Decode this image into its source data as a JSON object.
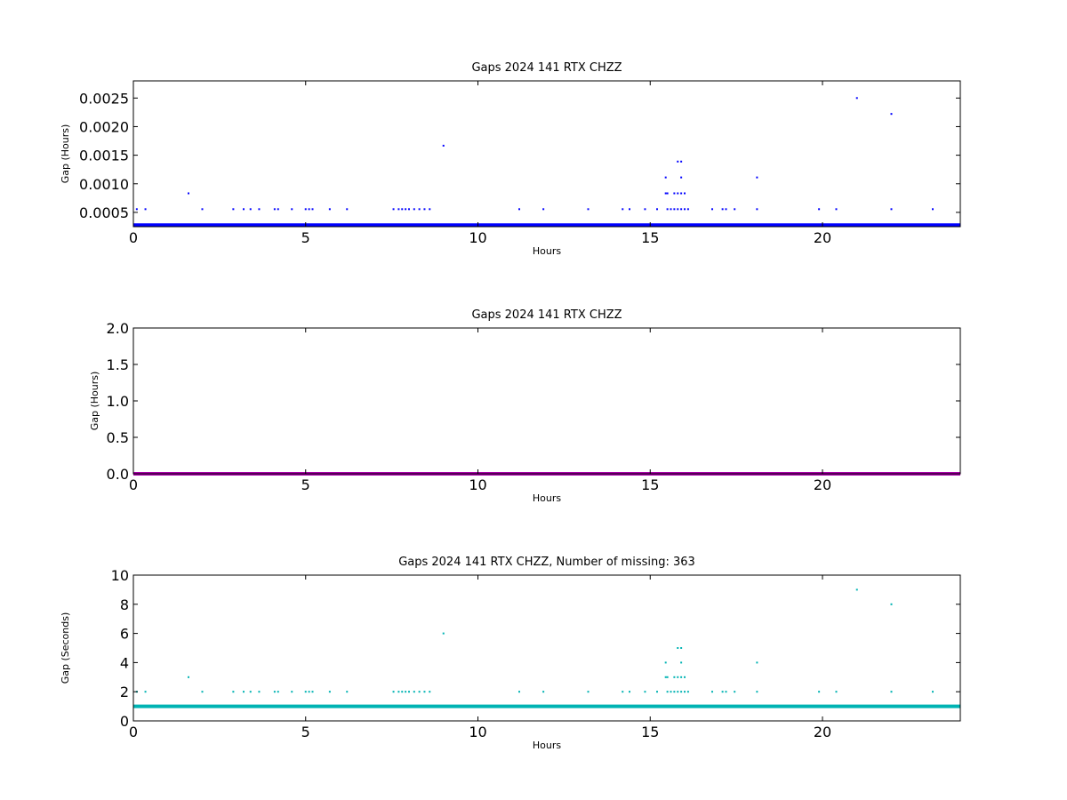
{
  "chart_data": [
    {
      "type": "scatter",
      "title": "Gaps 2024 141 RTX  CHZZ",
      "xlabel": "Hours",
      "ylabel": "Gap (Hours)",
      "xlim": [
        0,
        24
      ],
      "ylim": [
        0.00025,
        0.0028
      ],
      "xticks": [
        0,
        5,
        10,
        15,
        20
      ],
      "xtick_labels": [
        "0",
        "5",
        "10",
        "15",
        "20"
      ],
      "yticks": [
        0.0005,
        0.001,
        0.0015,
        0.002,
        0.0025
      ],
      "ytick_labels": [
        "0.0005",
        "0.0010",
        "0.0015",
        "0.0020",
        "0.0025"
      ],
      "grid": false,
      "color": "#0000ff",
      "baseline": {
        "y": 0.000278,
        "x_from": 0,
        "x_to": 24
      },
      "series": [
        {
          "x": [
            0.1,
            0.35,
            2.0,
            2.9,
            3.2,
            3.4,
            3.65,
            4.1,
            4.2,
            4.6,
            5.0,
            5.1,
            5.2,
            5.7,
            6.2,
            7.55,
            7.7,
            7.8,
            7.9,
            8.0,
            8.15,
            8.3,
            8.45,
            8.6,
            11.2,
            11.9,
            13.2,
            14.2,
            14.4,
            14.85,
            15.2,
            15.5,
            15.6,
            15.7,
            15.8,
            15.9,
            16.0,
            16.1,
            16.8,
            17.1,
            17.2,
            17.45,
            18.1,
            19.9,
            20.4,
            22.0,
            23.2,
            1.6,
            15.45,
            15.5,
            15.7,
            15.8,
            15.9,
            16.0,
            15.45,
            15.9,
            18.1,
            15.8,
            15.9,
            9.0,
            22.0,
            21.0
          ],
          "y": [
            0.000556,
            0.000556,
            0.000556,
            0.000556,
            0.000556,
            0.000556,
            0.000556,
            0.000556,
            0.000556,
            0.000556,
            0.000556,
            0.000556,
            0.000556,
            0.000556,
            0.000556,
            0.000556,
            0.000556,
            0.000556,
            0.000556,
            0.000556,
            0.000556,
            0.000556,
            0.000556,
            0.000556,
            0.000556,
            0.000556,
            0.000556,
            0.000556,
            0.000556,
            0.000556,
            0.000556,
            0.000556,
            0.000556,
            0.000556,
            0.000556,
            0.000556,
            0.000556,
            0.000556,
            0.000556,
            0.000556,
            0.000556,
            0.000556,
            0.000556,
            0.000556,
            0.000556,
            0.000556,
            0.000556,
            0.000833,
            0.000833,
            0.000833,
            0.000833,
            0.000833,
            0.000833,
            0.000833,
            0.001111,
            0.001111,
            0.001111,
            0.001389,
            0.001389,
            0.001667,
            0.002222,
            0.0025
          ]
        }
      ]
    },
    {
      "type": "scatter",
      "title": "Gaps 2024 141 RTX  CHZZ",
      "xlabel": "Hours",
      "ylabel": "Gap (Hours)",
      "xlim": [
        0,
        24
      ],
      "ylim": [
        0,
        2.0
      ],
      "xticks": [
        0,
        5,
        10,
        15,
        20
      ],
      "xtick_labels": [
        "0",
        "5",
        "10",
        "15",
        "20"
      ],
      "yticks": [
        0.0,
        0.5,
        1.0,
        1.5,
        2.0
      ],
      "ytick_labels": [
        "0.0",
        "0.5",
        "1.0",
        "1.5",
        "2.0"
      ],
      "grid": false,
      "color": "#aa00aa",
      "baseline": {
        "y": 0.0003,
        "x_from": 0,
        "x_to": 24
      },
      "series": [
        {
          "x": [],
          "y": []
        }
      ]
    },
    {
      "type": "scatter",
      "title": "Gaps 2024 141 RTX  CHZZ, Number of missing: 363",
      "xlabel": "Hours",
      "ylabel": "Gap (Seconds)",
      "xlim": [
        0,
        24
      ],
      "ylim": [
        0,
        10
      ],
      "xticks": [
        0,
        5,
        10,
        15,
        20
      ],
      "xtick_labels": [
        "0",
        "5",
        "10",
        "15",
        "20"
      ],
      "yticks": [
        0,
        2,
        4,
        6,
        8,
        10
      ],
      "ytick_labels": [
        "0",
        "2",
        "4",
        "6",
        "8",
        "10"
      ],
      "grid": false,
      "color": "#00b3b3",
      "baseline": {
        "y": 1,
        "x_from": 0,
        "x_to": 24
      },
      "series": [
        {
          "x": [
            0.1,
            0.35,
            2.0,
            2.9,
            3.2,
            3.4,
            3.65,
            4.1,
            4.2,
            4.6,
            5.0,
            5.1,
            5.2,
            5.7,
            6.2,
            7.55,
            7.7,
            7.8,
            7.9,
            8.0,
            8.15,
            8.3,
            8.45,
            8.6,
            11.2,
            11.9,
            13.2,
            14.2,
            14.4,
            14.85,
            15.2,
            15.5,
            15.6,
            15.7,
            15.8,
            15.9,
            16.0,
            16.1,
            16.8,
            17.1,
            17.2,
            17.45,
            18.1,
            19.9,
            20.4,
            22.0,
            23.2,
            1.6,
            15.45,
            15.5,
            15.7,
            15.8,
            15.9,
            16.0,
            15.45,
            15.9,
            18.1,
            15.8,
            15.9,
            9.0,
            22.0,
            21.0
          ],
          "y": [
            2,
            2,
            2,
            2,
            2,
            2,
            2,
            2,
            2,
            2,
            2,
            2,
            2,
            2,
            2,
            2,
            2,
            2,
            2,
            2,
            2,
            2,
            2,
            2,
            2,
            2,
            2,
            2,
            2,
            2,
            2,
            2,
            2,
            2,
            2,
            2,
            2,
            2,
            2,
            2,
            2,
            2,
            2,
            2,
            2,
            2,
            2,
            3,
            3,
            3,
            3,
            3,
            3,
            3,
            4,
            4,
            4,
            5,
            5,
            6,
            8,
            9
          ]
        }
      ]
    }
  ]
}
